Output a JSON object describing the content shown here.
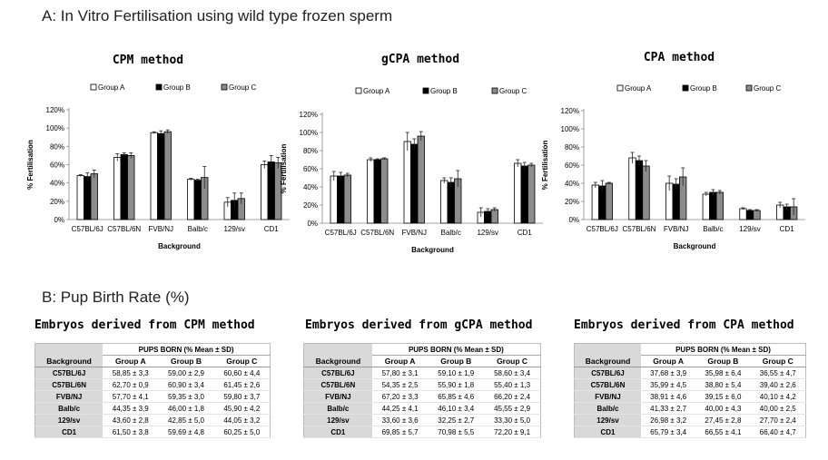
{
  "section_a_title": "A: In Vitro Fertilisation using wild type frozen sperm",
  "section_b_title": "B: Pup Birth Rate (%)",
  "colors": {
    "group_a": "#ffffff",
    "group_b": "#000000",
    "group_c": "#8c8c8c"
  },
  "chart_data": [
    {
      "type": "bar",
      "title": "CPM method",
      "xlabel": "Background",
      "ylabel": "% Fertilisation",
      "ylim": [
        0,
        120
      ],
      "yticks": [
        "0%",
        "20%",
        "40%",
        "60%",
        "80%",
        "100%",
        "120%"
      ],
      "legend": [
        "Group A",
        "Group B",
        "Group C"
      ],
      "categories": [
        "C57BL/6J",
        "C57BL/6N",
        "FVB/NJ",
        "Balb/c",
        "129/sv",
        "CD1"
      ],
      "series": [
        {
          "name": "Group A",
          "values": [
            48,
            68,
            95,
            44,
            19,
            60
          ],
          "errors": [
            1,
            4,
            1,
            1,
            5,
            4
          ]
        },
        {
          "name": "Group B",
          "values": [
            47,
            71,
            94,
            43,
            21,
            63
          ],
          "errors": [
            4,
            2,
            3,
            1,
            8,
            7
          ]
        },
        {
          "name": "Group C",
          "values": [
            50,
            70,
            96,
            46,
            23,
            62
          ],
          "errors": [
            4,
            3,
            2,
            12,
            6,
            6
          ]
        }
      ]
    },
    {
      "type": "bar",
      "title": "gCPA method",
      "xlabel": "Background",
      "ylabel": "% Fertilisation",
      "ylim": [
        0,
        120
      ],
      "yticks": [
        "0%",
        "20%",
        "40%",
        "60%",
        "80%",
        "100%",
        "120%"
      ],
      "legend": [
        "Group A",
        "Group B",
        "Group C"
      ],
      "categories": [
        "C57BL/6J",
        "C57BL/6N",
        "FVB/NJ",
        "Balb/c",
        "129/sv",
        "CD1"
      ],
      "series": [
        {
          "name": "Group A",
          "values": [
            52,
            70,
            90,
            47,
            12,
            66
          ],
          "errors": [
            5,
            2,
            10,
            3,
            5,
            4
          ]
        },
        {
          "name": "Group B",
          "values": [
            52,
            70,
            87,
            45,
            13,
            63
          ],
          "errors": [
            4,
            1,
            6,
            5,
            3,
            4
          ]
        },
        {
          "name": "Group C",
          "values": [
            53,
            71,
            96,
            49,
            15,
            64
          ],
          "errors": [
            2,
            1,
            5,
            9,
            2,
            2
          ]
        }
      ]
    },
    {
      "type": "bar",
      "title": "CPA method",
      "xlabel": "Background",
      "ylabel": "% Fertilisation",
      "ylim": [
        0,
        120
      ],
      "yticks": [
        "0%",
        "20%",
        "40%",
        "60%",
        "80%",
        "100%",
        "120%"
      ],
      "legend": [
        "Group A",
        "Group B",
        "Group C"
      ],
      "categories": [
        "C57BL/6J",
        "C57BL/6N",
        "FVB/NJ",
        "Balb/c",
        "129/sv",
        "CD1"
      ],
      "series": [
        {
          "name": "Group A",
          "values": [
            38,
            68,
            40,
            28,
            12,
            16
          ],
          "errors": [
            3,
            6,
            8,
            2,
            1,
            3
          ]
        },
        {
          "name": "Group B",
          "values": [
            37,
            65,
            39,
            30,
            10,
            14
          ],
          "errors": [
            6,
            5,
            6,
            3,
            1,
            3
          ]
        },
        {
          "name": "Group C",
          "values": [
            40,
            59,
            47,
            30,
            10,
            14
          ],
          "errors": [
            1,
            6,
            10,
            2,
            1,
            9
          ]
        }
      ]
    }
  ],
  "tables": [
    {
      "title": "Embryos derived from CPM method",
      "header": "PUPS BORN (% Mean ± SD)",
      "columns": [
        "Background",
        "Group A",
        "Group B",
        "Group C"
      ],
      "rows": [
        [
          "C57BL/6J",
          "58,85 ± 3,3",
          "59,00 ± 2,9",
          "60,60 ± 4,4"
        ],
        [
          "C57BL/6N",
          "62,70 ± 0,9",
          "60,90 ± 3,4",
          "61,45 ± 2,6"
        ],
        [
          "FVB/NJ",
          "57,70 ± 4,1",
          "59,35 ± 3,0",
          "59,80 ± 3,7"
        ],
        [
          "Balb/c",
          "44,35 ± 3,9",
          "46,00 ± 1,8",
          "45,90 ± 4,2"
        ],
        [
          "129/sv",
          "43,60 ± 2,8",
          "42,85 ± 5,0",
          "44,05 ± 3,2"
        ],
        [
          "CD1",
          "61,50 ± 3,8",
          "59,69 ± 4,8",
          "60,25 ± 5,0"
        ]
      ]
    },
    {
      "title": "Embryos derived from gCPA method",
      "header": "PUPS BORN (% Mean ± SD)",
      "columns": [
        "Background",
        "Group A",
        "Group B",
        "Group C"
      ],
      "rows": [
        [
          "C57BL/6J",
          "57,80 ± 3,1",
          "59,10 ± 1,9",
          "58,60 ± 3,4"
        ],
        [
          "C57BL/6N",
          "54,35 ± 2,5",
          "55,90 ± 1,8",
          "55,40 ± 1,3"
        ],
        [
          "FVB/NJ",
          "67,20 ± 3,3",
          "65,85 ± 4,6",
          "66,20 ± 2,4"
        ],
        [
          "Balb/c",
          "44,25 ± 4,1",
          "46,10 ± 3,4",
          "45,55 ± 2,9"
        ],
        [
          "129/sv",
          "33,60 ± 3,6",
          "32,25 ± 2,7",
          "33,30 ± 5,0"
        ],
        [
          "CD1",
          "69,85 ± 5,7",
          "70,98 ± 5,5",
          "72,20 ± 9,1"
        ]
      ]
    },
    {
      "title": "Embryos derived from CPA method",
      "header": "PUPS BORN (% Mean ± SD)",
      "columns": [
        "Background",
        "Group A",
        "Group B",
        "Group C"
      ],
      "rows": [
        [
          "C57BL/6J",
          "37,68 ± 3,9",
          "35,98 ± 6,4",
          "36,55 ± 4,7"
        ],
        [
          "C57BL/6N",
          "35,99 ± 4,5",
          "38,80 ± 5,4",
          "39,40 ± 2,6"
        ],
        [
          "FVB/NJ",
          "38,91 ± 4,6",
          "39,15 ± 6,0",
          "40,10 ± 4,2"
        ],
        [
          "Balb/c",
          "41,33 ± 2,7",
          "40,00 ± 4,3",
          "40,00 ± 2,5"
        ],
        [
          "129/sv",
          "26,98 ± 3,2",
          "27,45 ± 2,8",
          "27,70 ± 2,4"
        ],
        [
          "CD1",
          "65,79 ± 3,4",
          "66,55 ± 4,1",
          "66,40 ± 4,7"
        ]
      ]
    }
  ]
}
